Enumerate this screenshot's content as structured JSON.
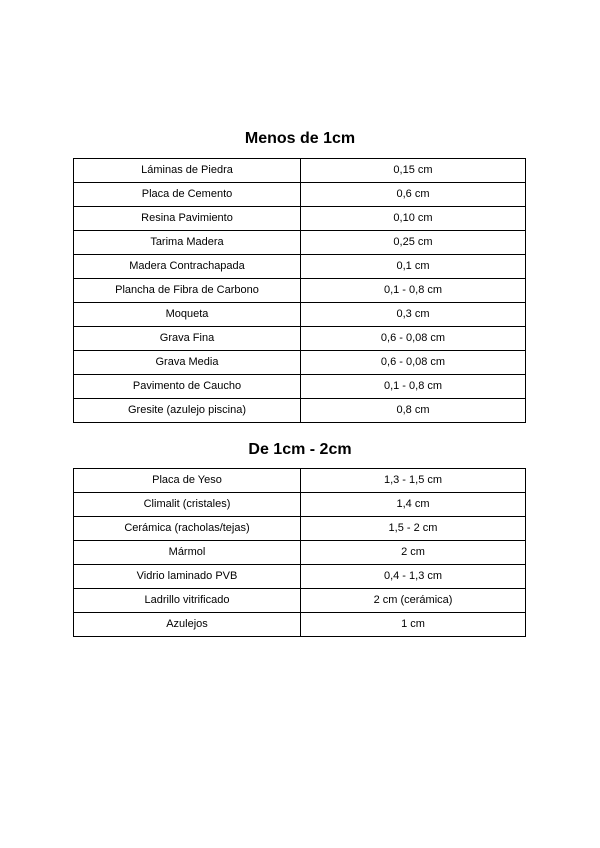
{
  "sections": [
    {
      "title": "Menos de 1cm",
      "rows": [
        [
          "Láminas de Piedra",
          "0,15 cm"
        ],
        [
          "Placa de Cemento",
          "0,6 cm"
        ],
        [
          "Resina Pavimiento",
          "0,10 cm"
        ],
        [
          "Tarima Madera",
          "0,25 cm"
        ],
        [
          "Madera Contrachapada",
          "0,1 cm"
        ],
        [
          "Plancha de Fibra de Carbono",
          "0,1 - 0,8 cm"
        ],
        [
          "Moqueta",
          "0,3 cm"
        ],
        [
          "Grava Fina",
          "0,6 - 0,08 cm"
        ],
        [
          "Grava Media",
          "0,6 - 0,08 cm"
        ],
        [
          "Pavimento de Caucho",
          "0,1 - 0,8 cm"
        ],
        [
          "Gresite (azulejo piscina)",
          "0,8 cm"
        ]
      ]
    },
    {
      "title": "De 1cm - 2cm",
      "rows": [
        [
          "Placa de Yeso",
          "1,3 - 1,5 cm"
        ],
        [
          "Climalit (cristales)",
          "1,4 cm"
        ],
        [
          "Cerámica (racholas/tejas)",
          "1,5 - 2 cm"
        ],
        [
          "Mármol",
          "2 cm"
        ],
        [
          "Vidrio laminado PVB",
          "0,4 - 1,3 cm"
        ],
        [
          "Ladrillo vitrificado",
          "2 cm (cerámica)"
        ],
        [
          "Azulejos",
          "1 cm"
        ]
      ]
    }
  ]
}
